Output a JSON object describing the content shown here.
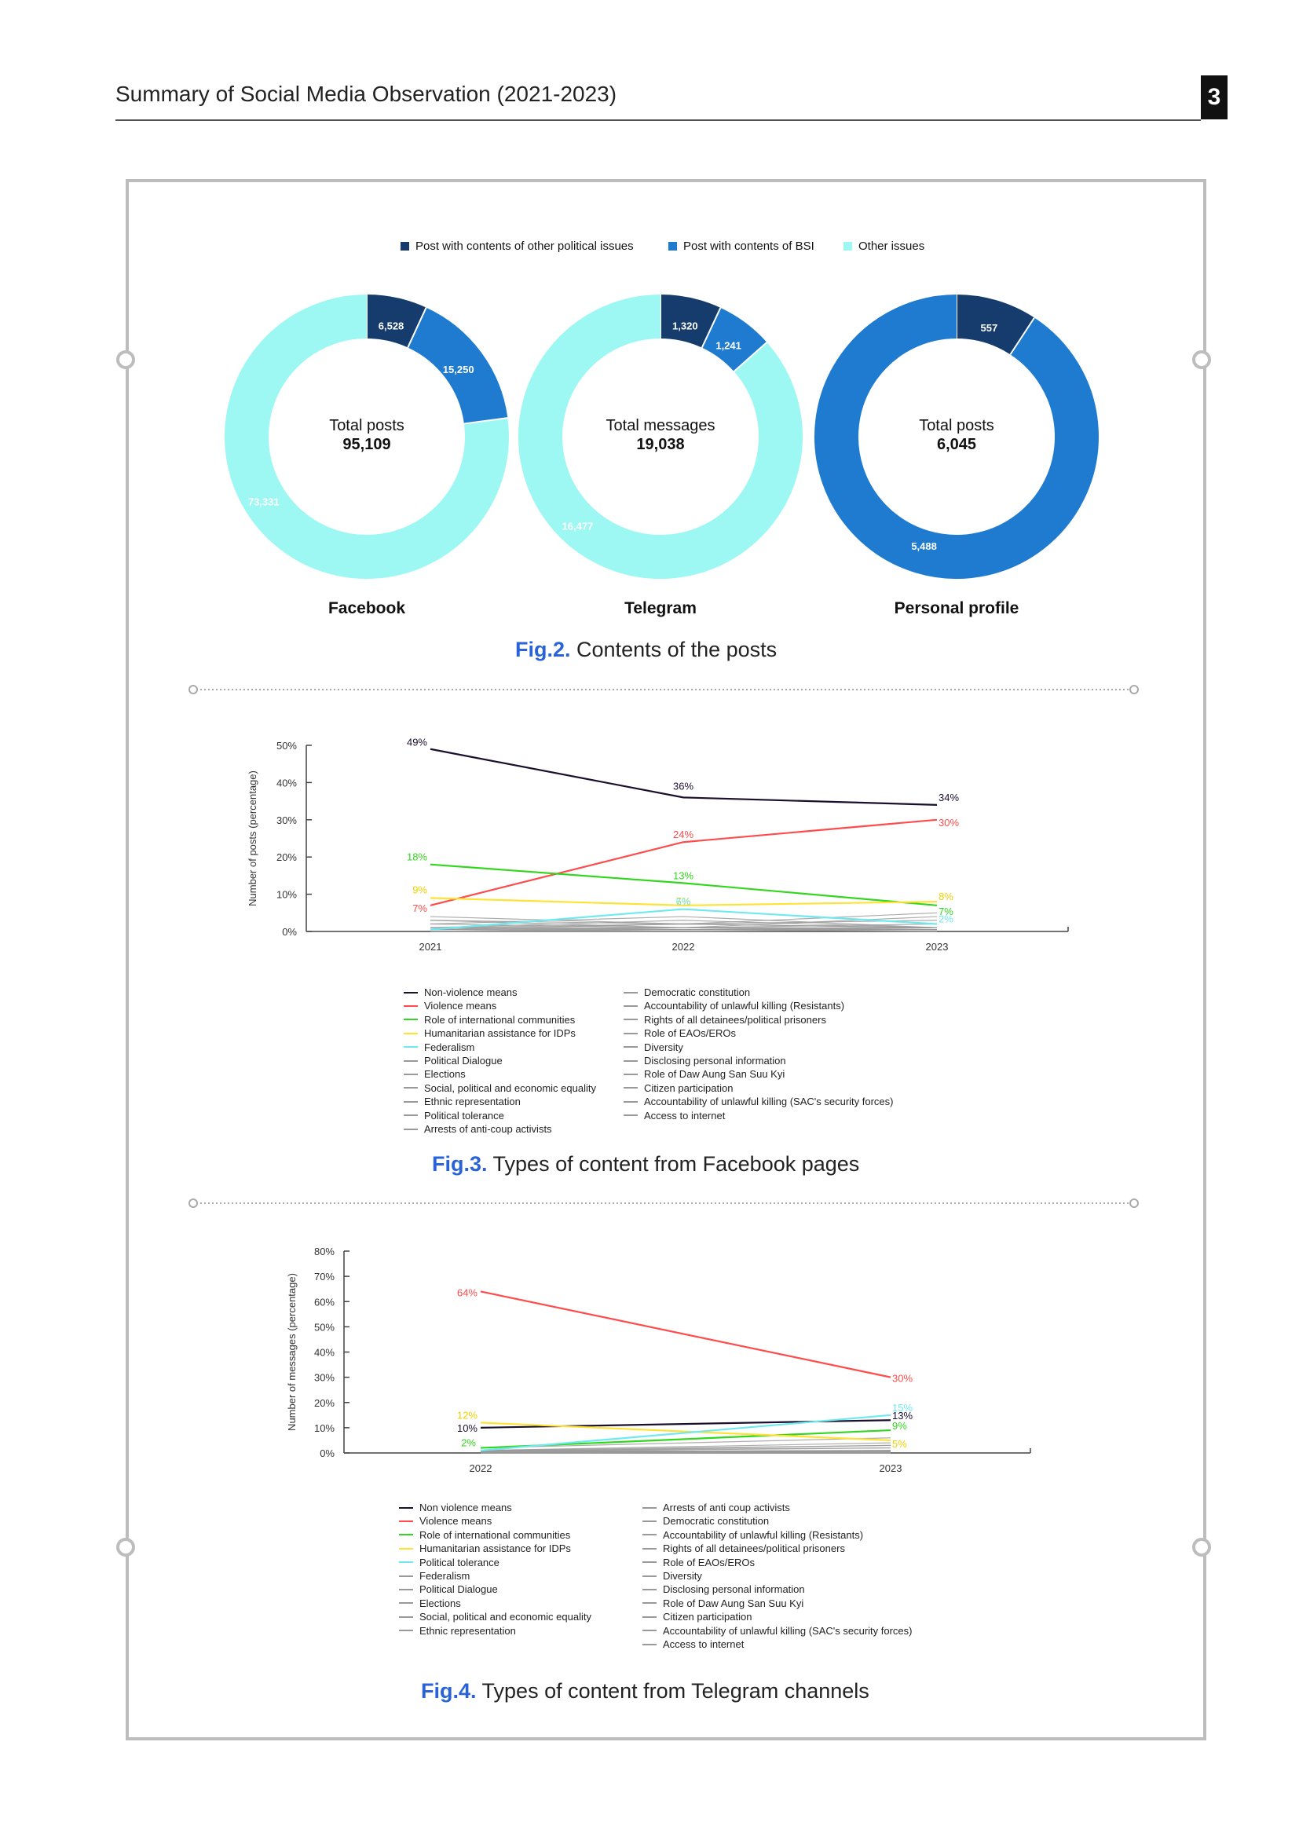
{
  "header": {
    "title": "Summary of Social Media Observation (2021-2023)",
    "page_number": "3"
  },
  "fig2": {
    "caption_num": "Fig.2.",
    "caption_text": "Contents of the posts",
    "legend": [
      {
        "label": "Post with contents of other political issues",
        "color": "#163c6e"
      },
      {
        "label": "Post with contents of BSI",
        "color": "#1f7bd0"
      },
      {
        "label": "Other issues",
        "color": "#9df7f2"
      }
    ]
  },
  "fig3": {
    "caption_num": "Fig.3.",
    "caption_text": "Types of content from Facebook pages"
  },
  "fig4": {
    "caption_num": "Fig.4.",
    "caption_text": "Types of content from Telegram channels"
  },
  "chart_data": [
    {
      "type": "pie",
      "subtype": "donut",
      "name": "Facebook",
      "center_label": "Total posts",
      "center_value": "95,109",
      "slices": [
        {
          "label": "Post with contents of other political issues",
          "value": 6528,
          "text": "6,528",
          "color": "#163c6e"
        },
        {
          "label": "Post with contents of BSI",
          "value": 15250,
          "text": "15,250",
          "color": "#1f7bd0"
        },
        {
          "label": "Other issues",
          "value": 73331,
          "text": "73,331",
          "color": "#9df7f2"
        }
      ]
    },
    {
      "type": "pie",
      "subtype": "donut",
      "name": "Telegram",
      "center_label": "Total messages",
      "center_value": "19,038",
      "slices": [
        {
          "label": "Post with contents of other political issues",
          "value": 1320,
          "text": "1,320",
          "color": "#163c6e"
        },
        {
          "label": "Post with contents of BSI",
          "value": 1241,
          "text": "1,241",
          "color": "#1f7bd0"
        },
        {
          "label": "Other issues",
          "value": 16477,
          "text": "16,477",
          "color": "#9df7f2"
        }
      ]
    },
    {
      "type": "pie",
      "subtype": "donut",
      "name": "Personal profile",
      "center_label": "Total posts",
      "center_value": "6,045",
      "slices": [
        {
          "label": "Post with contents of other political issues",
          "value": 557,
          "text": "557",
          "color": "#163c6e"
        },
        {
          "label": "Post with contents of BSI",
          "value": 5488,
          "text": "5,488",
          "color": "#1f7bd0"
        }
      ]
    },
    {
      "type": "line",
      "name": "Facebook pages",
      "ylabel": "Number of posts (percentage)",
      "x": [
        "2021",
        "2022",
        "2023"
      ],
      "ylim": [
        0,
        50
      ],
      "yticks": [
        "0%",
        "10%",
        "20%",
        "30%",
        "40%",
        "50%"
      ],
      "series": [
        {
          "name": "Non-violence means",
          "color": "#1b0f2e",
          "values": [
            49,
            36,
            34
          ],
          "labels": [
            "49%",
            "36%",
            "34%"
          ]
        },
        {
          "name": "Violence means",
          "color": "#ff4b4b",
          "values": [
            7,
            24,
            30
          ],
          "labels": [
            "7%",
            "24%",
            "30%"
          ]
        },
        {
          "name": "Role of international communities",
          "color": "#33d61e",
          "values": [
            18,
            13,
            7
          ],
          "labels": [
            "18%",
            "13%",
            "7%"
          ]
        },
        {
          "name": "Humanitarian assistance for IDPs",
          "color": "#ffe234",
          "values": [
            9,
            7,
            8
          ],
          "labels": [
            "9%",
            "7%",
            "8%"
          ]
        },
        {
          "name": "Federalism",
          "color": "#6fe9ef",
          "values": [
            0.5,
            6,
            2
          ],
          "labels": [
            "",
            "6%",
            "2%"
          ]
        },
        {
          "name": "Political Dialogue",
          "color": "#999999",
          "values": [
            4,
            2,
            5
          ],
          "labels": []
        },
        {
          "name": "Elections",
          "color": "#999999",
          "values": [
            3,
            2,
            1
          ],
          "labels": []
        },
        {
          "name": "Social, political and economic equality",
          "color": "#999999",
          "values": [
            2,
            1,
            4
          ],
          "labels": []
        },
        {
          "name": "Ethnic representation",
          "color": "#999999",
          "values": [
            1,
            3,
            1
          ],
          "labels": []
        },
        {
          "name": "Political tolerance",
          "color": "#999999",
          "values": [
            1,
            1,
            2
          ],
          "labels": []
        },
        {
          "name": "Arrests of anti-coup activists",
          "color": "#999999",
          "values": [
            2,
            4,
            1
          ],
          "labels": []
        },
        {
          "name": "Democratic constitution",
          "color": "#999999",
          "values": [
            1,
            2,
            3
          ],
          "labels": []
        },
        {
          "name": "Accountability of unlawful killing (Resistants)",
          "color": "#999999",
          "values": [
            0.5,
            1,
            1
          ],
          "labels": []
        },
        {
          "name": "Rights of all detainees/political prisoners",
          "color": "#999999",
          "values": [
            1,
            0.5,
            0.5
          ],
          "labels": []
        },
        {
          "name": "Role of EAOs/EROs",
          "color": "#999999",
          "values": [
            0.5,
            2,
            1
          ],
          "labels": []
        },
        {
          "name": "Diversity",
          "color": "#999999",
          "values": [
            0,
            0.5,
            0.5
          ],
          "labels": []
        },
        {
          "name": "Disclosing personal information",
          "color": "#999999",
          "values": [
            0,
            0.5,
            0
          ],
          "labels": []
        },
        {
          "name": "Role of Daw Aung San Suu Kyi",
          "color": "#999999",
          "values": [
            3,
            1,
            0.5
          ],
          "labels": []
        },
        {
          "name": "Citizen participation",
          "color": "#999999",
          "values": [
            0.5,
            0.5,
            1
          ],
          "labels": []
        },
        {
          "name": "Accountability of unlawful killing (SAC's security forces)",
          "color": "#999999",
          "values": [
            0,
            1,
            0.5
          ],
          "labels": []
        },
        {
          "name": "Access to internet",
          "color": "#999999",
          "values": [
            0,
            0,
            0.5
          ],
          "labels": []
        }
      ]
    },
    {
      "type": "line",
      "name": "Telegram channels",
      "ylabel": "Number of messages (percentage)",
      "x": [
        "2022",
        "2023"
      ],
      "ylim": [
        0,
        80
      ],
      "yticks": [
        "0%",
        "10%",
        "20%",
        "30%",
        "40%",
        "50%",
        "60%",
        "70%",
        "80%"
      ],
      "series": [
        {
          "name": "Non violence means",
          "color": "#1b0f2e",
          "values": [
            10,
            13
          ],
          "labels": [
            "10%",
            "13%"
          ]
        },
        {
          "name": "Violence means",
          "color": "#ff4b4b",
          "values": [
            64,
            30
          ],
          "labels": [
            "64%",
            "30%"
          ]
        },
        {
          "name": "Role of international communities",
          "color": "#33d61e",
          "values": [
            2,
            9
          ],
          "labels": [
            "2%",
            "9%"
          ]
        },
        {
          "name": "Humanitarian assistance for IDPs",
          "color": "#ffe234",
          "values": [
            12,
            5
          ],
          "labels": [
            "12%",
            "5%"
          ]
        },
        {
          "name": "Political tolerance",
          "color": "#6fe9ef",
          "values": [
            1,
            15
          ],
          "labels": [
            "",
            "15%"
          ]
        },
        {
          "name": "Federalism",
          "color": "#999999",
          "values": [
            1,
            4
          ],
          "labels": []
        },
        {
          "name": "Political Dialogue",
          "color": "#999999",
          "values": [
            0.5,
            3
          ],
          "labels": []
        },
        {
          "name": "Elections",
          "color": "#999999",
          "values": [
            1,
            2
          ],
          "labels": []
        },
        {
          "name": "Social, political and economic equality",
          "color": "#999999",
          "values": [
            0.5,
            1
          ],
          "labels": []
        },
        {
          "name": "Ethnic representation",
          "color": "#999999",
          "values": [
            0,
            1
          ],
          "labels": []
        },
        {
          "name": "Arrests of anti coup activists",
          "color": "#999999",
          "values": [
            2,
            6
          ],
          "labels": []
        },
        {
          "name": "Democratic constitution",
          "color": "#999999",
          "values": [
            0.5,
            2
          ],
          "labels": []
        },
        {
          "name": "Accountability of unlawful killing (Resistants)",
          "color": "#999999",
          "values": [
            1,
            0.5
          ],
          "labels": []
        },
        {
          "name": "Rights of all detainees/political prisoners",
          "color": "#999999",
          "values": [
            0.5,
            1
          ],
          "labels": []
        },
        {
          "name": "Role of EAOs/EROs",
          "color": "#999999",
          "values": [
            1,
            3
          ],
          "labels": []
        },
        {
          "name": "Diversity",
          "color": "#999999",
          "values": [
            0,
            0.5
          ],
          "labels": []
        },
        {
          "name": "Disclosing personal information",
          "color": "#999999",
          "values": [
            0,
            0
          ],
          "labels": []
        },
        {
          "name": "Role of Daw Aung San Suu Kyi",
          "color": "#999999",
          "values": [
            0.5,
            0.5
          ],
          "labels": []
        },
        {
          "name": "Citizen participation",
          "color": "#999999",
          "values": [
            0,
            1
          ],
          "labels": []
        },
        {
          "name": "Accountability of unlawful killing (SAC's security forces)",
          "color": "#999999",
          "values": [
            0,
            0.5
          ],
          "labels": []
        },
        {
          "name": "Access to internet",
          "color": "#999999",
          "values": [
            0,
            0
          ],
          "labels": []
        }
      ]
    }
  ]
}
